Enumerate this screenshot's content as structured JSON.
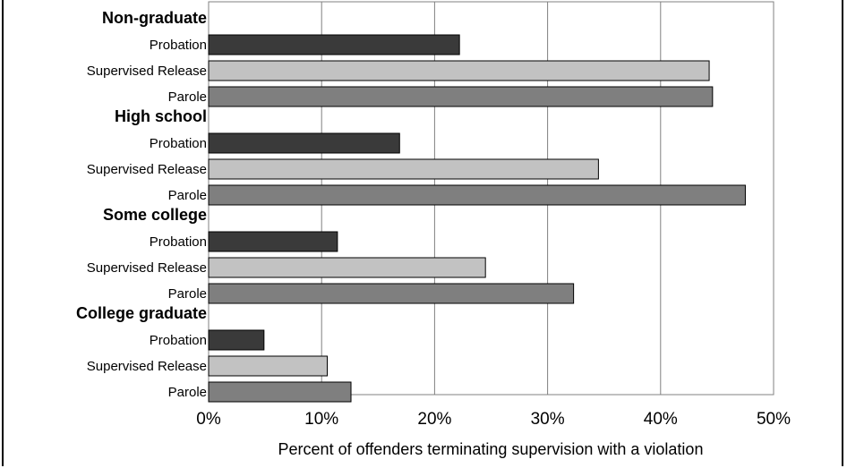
{
  "chart_data": {
    "type": "bar",
    "orientation": "horizontal",
    "xlabel": "Percent of offenders terminating supervision with a violation",
    "xlim": [
      0,
      50
    ],
    "x_ticks": [
      "0%",
      "10%",
      "20%",
      "30%",
      "40%",
      "50%"
    ],
    "grid": "vertical",
    "legend": "none",
    "groups": [
      {
        "name": "Non-graduate",
        "categories": [
          "Probation",
          "Supervised Release",
          "Parole"
        ],
        "values": [
          22.2,
          44.3,
          44.6
        ]
      },
      {
        "name": "High school",
        "categories": [
          "Probation",
          "Supervised Release",
          "Parole"
        ],
        "values": [
          16.9,
          34.5,
          47.5
        ]
      },
      {
        "name": "Some college",
        "categories": [
          "Probation",
          "Supervised Release",
          "Parole"
        ],
        "values": [
          11.4,
          24.5,
          32.3
        ]
      },
      {
        "name": "College graduate",
        "categories": [
          "Probation",
          "Supervised Release",
          "Parole"
        ],
        "values": [
          4.9,
          10.5,
          12.6
        ]
      }
    ],
    "colors": {
      "Probation": "#3a3a3a",
      "Supervised Release": "#c2c2c2",
      "Parole": "#7f7f7f"
    }
  }
}
